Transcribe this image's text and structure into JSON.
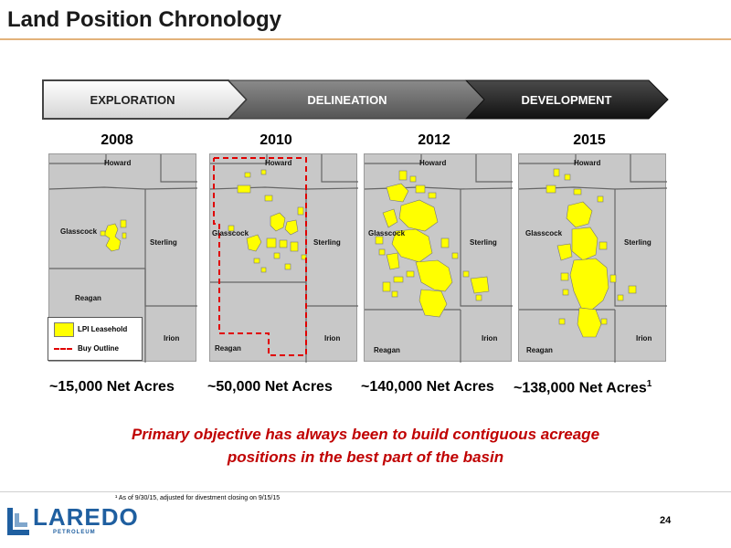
{
  "title": "Land Position Chronology",
  "phases": [
    "EXPLORATION",
    "DELINEATION",
    "DEVELOPMENT"
  ],
  "panels": [
    {
      "year": "2008",
      "acres": "~15,000 Net Acres"
    },
    {
      "year": "2010",
      "acres": "~50,000 Net Acres"
    },
    {
      "year": "2012",
      "acres": "~140,000 Net Acres"
    },
    {
      "year": "2015",
      "acres": "~138,000 Net Acres",
      "acres_footnote": "1"
    }
  ],
  "counties": {
    "howard": "Howard",
    "glasscock": "Glasscock",
    "sterling": "Sterling",
    "reagan": "Reagan",
    "irion": "Irion"
  },
  "legend": {
    "leasehold": "LPI Leasehold",
    "buy_outline": "Buy Outline"
  },
  "objective": {
    "line1": "Primary objective has always been to build contiguous acreage",
    "line2": "positions in the best part of the basin"
  },
  "footnote": "¹ As of 9/30/15, adjusted for divestment closing on 9/15/15",
  "logo": {
    "name": "LAREDO",
    "sub": "PETROLEUM"
  },
  "page_number": "24",
  "colors": {
    "leasehold": "#ffff00",
    "buy_outline": "#e00000",
    "title_rule": "#e3b27a",
    "objective": "#c00000",
    "brand": "#1f5fa0"
  }
}
